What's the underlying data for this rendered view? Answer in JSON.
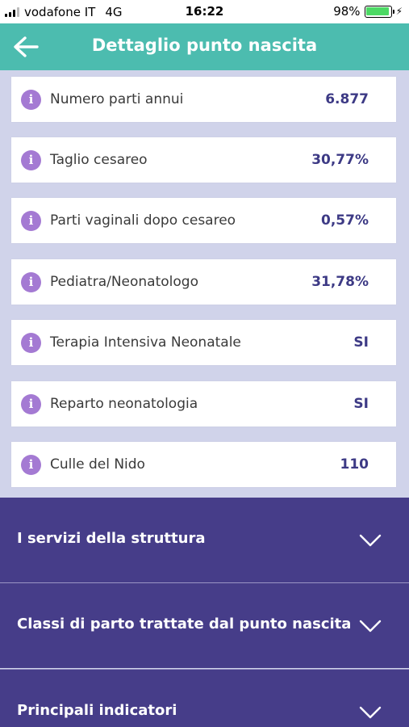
{
  "status_bar": {
    "carrier": "vodafone IT",
    "network": "4G",
    "time": "16:22",
    "battery": "98%",
    "battery_level": 0.98,
    "battery_color": "#4cd964"
  },
  "header": {
    "title": "Dettaglio punto nascita",
    "back_icon": "arrow-left-icon",
    "color": "#4cbcaf"
  },
  "stats": [
    {
      "label": "Numero parti annui",
      "value": "6.877"
    },
    {
      "label": "Taglio cesareo",
      "value": "30,77%"
    },
    {
      "label": "Parti vaginali dopo cesareo",
      "value": "0,57%"
    },
    {
      "label": "Pediatra/Neonatologo",
      "value": "31,78%"
    },
    {
      "label": "Terapia Intensiva Neonatale",
      "value": "SI"
    },
    {
      "label": "Reparto neonatologia",
      "value": "SI"
    },
    {
      "label": "Culle del Nido",
      "value": "110"
    }
  ],
  "info_icon_glyph": "i",
  "sections": [
    {
      "title": "I servizi della struttura",
      "icon": "chevron-down-icon"
    },
    {
      "title": "Classi di parto trattate dal punto nascita",
      "icon": "chevron-down-icon"
    },
    {
      "title": "Principali indicatori",
      "icon": "chevron-down-icon"
    }
  ],
  "colors": {
    "background": "#d0d3ea",
    "accent_purple": "#463d89",
    "info_icon": "#a47ad3",
    "value_text": "#3d3a85"
  }
}
